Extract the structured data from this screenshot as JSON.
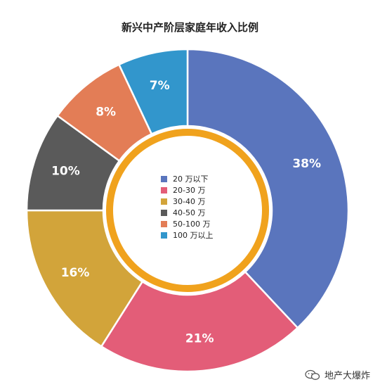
{
  "chart_data": {
    "type": "pie",
    "title": "新兴中产阶层家庭年收入比例",
    "categories": [
      "20 万以下",
      "20-30 万",
      "30-40 万",
      "40-50 万",
      "50-100 万",
      "100 万以上"
    ],
    "values": [
      38,
      21,
      16,
      10,
      8,
      7
    ],
    "data_labels": [
      "38%",
      "21%",
      "16%",
      "10%",
      "8%",
      "7%"
    ],
    "colors": [
      "#5a75bd",
      "#e35d78",
      "#d2a43a",
      "#5a5a5a",
      "#e37d56",
      "#3296cc"
    ],
    "legend": "center",
    "donut_ring_color": "#f0a21d"
  },
  "watermark": {
    "text": "地产大爆炸"
  }
}
